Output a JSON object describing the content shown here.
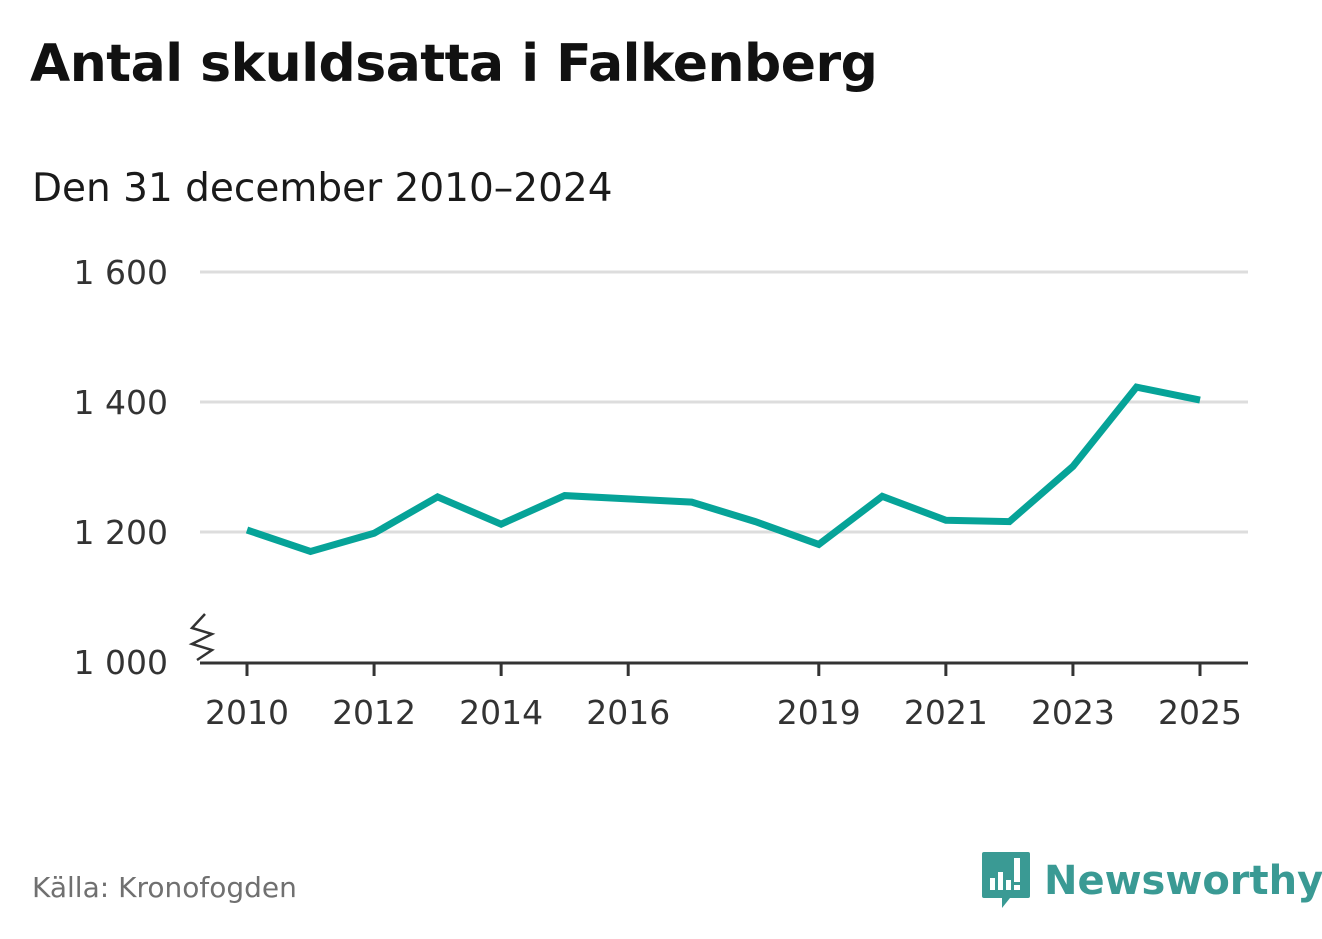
{
  "header": {
    "title": "Antal skuldsatta i Falkenberg",
    "subtitle": "Den 31 december 2010–2024"
  },
  "footer": {
    "source": "Källa: Kronofogden",
    "brand": "Newsworthy"
  },
  "colors": {
    "line": "#06a398",
    "brand": "#3a9a94",
    "grid": "#dddddd",
    "axis": "#333333"
  },
  "icons": {
    "brand_logo": "newsworthy-logo-icon",
    "axis_break": "axis-break-icon"
  },
  "chart_data": {
    "type": "line",
    "title": "Antal skuldsatta i Falkenberg",
    "subtitle": "Den 31 december 2010–2024",
    "xlabel": "",
    "ylabel": "",
    "x": [
      2010,
      2011,
      2012,
      2013,
      2014,
      2015,
      2016,
      2017,
      2018,
      2019,
      2020,
      2021,
      2022,
      2023,
      2024,
      2025
    ],
    "series": [
      {
        "values": [
          1203,
          1170,
          1198,
          1254,
          1212,
          1256,
          1251,
          1246,
          1216,
          1181,
          1255,
          1218,
          1216,
          1301,
          1423,
          1403
        ]
      }
    ],
    "xlim": [
      2010,
      2025
    ],
    "ylim": [
      1000,
      1600
    ],
    "x_ticks": [
      "2010",
      "2012",
      "2014",
      "2016",
      "2019",
      "2021",
      "2023",
      "2025"
    ],
    "y_ticks": [
      "1 000",
      "1 200",
      "1 400",
      "1 600"
    ],
    "y_axis_break": true,
    "grid": "horizontal",
    "legend": "none"
  }
}
